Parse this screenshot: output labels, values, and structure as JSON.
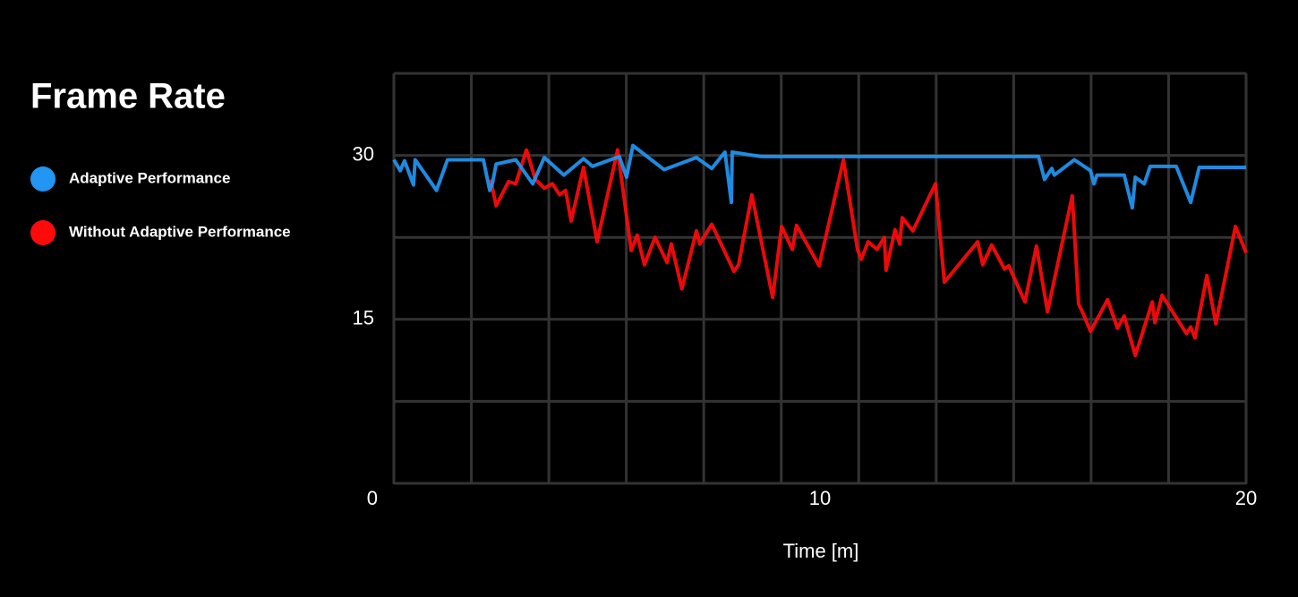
{
  "chart_data": {
    "type": "line",
    "title": "Frame Rate",
    "xlabel": "Time [m]",
    "xlim": [
      0,
      20
    ],
    "xticks": [
      0,
      10,
      20
    ],
    "ylim": [
      0,
      37.5
    ],
    "yticks": [
      15,
      30
    ],
    "grid": true,
    "xgrid_divisions": 11,
    "ygrid_divisions": 5,
    "legend": "left",
    "series": [
      {
        "name": "Adaptive Performance",
        "color": "#2196f3",
        "x": [
          0,
          0.15,
          0.25,
          0.46,
          0.5,
          1.0,
          1.26,
          2.1,
          2.25,
          2.31,
          2.4,
          2.86,
          3.26,
          3.53,
          3.99,
          4.45,
          4.66,
          5.29,
          5.46,
          5.61,
          6.34,
          7.1,
          7.46,
          7.77,
          7.92,
          7.94,
          8.61,
          15.13,
          15.27,
          15.44,
          15.5,
          15.97,
          16.35,
          16.43,
          16.5,
          17.14,
          17.33,
          17.4,
          17.61,
          17.75,
          18.36,
          18.7,
          18.9,
          20
        ],
        "values": [
          29.6,
          28.6,
          29.5,
          27.3,
          29.6,
          26.8,
          29.6,
          29.6,
          26.8,
          27.4,
          29.2,
          29.6,
          27.4,
          29.8,
          28.2,
          29.7,
          29.0,
          29.9,
          28.0,
          30.9,
          28.7,
          29.8,
          28.8,
          30.3,
          25.7,
          30.3,
          29.9,
          29.9,
          27.8,
          28.8,
          28.2,
          29.6,
          28.6,
          27.4,
          28.2,
          28.2,
          25.2,
          28.0,
          27.4,
          29.0,
          29.0,
          25.7,
          28.9,
          28.9
        ]
      },
      {
        "name": "Without Adaptive Performance",
        "color": "#ff0a0a",
        "x": [
          2.27,
          2.4,
          2.69,
          2.86,
          3.11,
          3.32,
          3.53,
          3.72,
          3.89,
          4.03,
          4.16,
          4.45,
          4.77,
          5.25,
          5.57,
          5.71,
          5.88,
          6.13,
          6.41,
          6.51,
          6.76,
          7.1,
          7.18,
          7.46,
          7.98,
          8.09,
          8.4,
          8.89,
          9.1,
          9.35,
          9.45,
          9.98,
          10.55,
          10.88,
          10.97,
          11.13,
          11.34,
          11.51,
          11.55,
          11.76,
          11.87,
          11.93,
          12.18,
          12.71,
          12.92,
          13.7,
          13.82,
          14.03,
          14.33,
          14.43,
          14.81,
          15.08,
          15.34,
          15.92,
          16.07,
          16.18,
          16.35,
          16.75,
          16.98,
          17.14,
          17.4,
          17.8,
          17.86,
          18.03,
          18.6,
          18.7,
          18.8,
          19.08,
          19.29,
          19.75,
          20
        ],
        "values": [
          27.8,
          25.4,
          27.6,
          27.4,
          30.5,
          27.8,
          27.0,
          27.4,
          26.4,
          26.8,
          24.0,
          28.9,
          22.1,
          30.5,
          21.3,
          22.7,
          20.0,
          22.5,
          20.2,
          21.9,
          17.8,
          23.1,
          21.9,
          23.7,
          19.4,
          20.0,
          26.4,
          17.0,
          23.5,
          21.4,
          23.6,
          19.9,
          29.6,
          21.4,
          20.5,
          22.1,
          21.4,
          22.5,
          19.5,
          23.2,
          21.9,
          24.3,
          23.1,
          27.4,
          18.4,
          22.1,
          20.0,
          21.8,
          19.6,
          19.9,
          16.6,
          21.7,
          15.7,
          26.3,
          16.4,
          15.5,
          13.9,
          16.8,
          14.2,
          15.3,
          11.7,
          16.6,
          14.7,
          17.2,
          13.7,
          14.3,
          13.3,
          19.0,
          14.6,
          23.5,
          21.1
        ]
      }
    ]
  }
}
